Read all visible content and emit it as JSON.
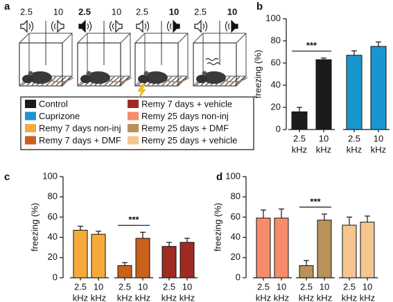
{
  "panel_a": {
    "label": "a",
    "boxes": [
      {
        "left": "2.5",
        "right": "10",
        "bold": "none"
      },
      {
        "left": "2.5",
        "right": "10",
        "bold": "left"
      },
      {
        "left": "2.5",
        "right": "10",
        "bold": "right"
      },
      {
        "left": "2.5",
        "right": "10",
        "bold": "right"
      }
    ]
  },
  "chart_data": [
    {
      "type": "bar",
      "panel": "b",
      "ylabel": "freezing (%)",
      "ylim": [
        0,
        100
      ],
      "yticks": [
        0,
        20,
        40,
        60,
        80,
        100
      ],
      "categories": [
        "2.5",
        "10"
      ],
      "category_unit": "kHz",
      "series": [
        {
          "name": "Control",
          "color": "#1b1b1b",
          "values": [
            16,
            63
          ],
          "errors": [
            4,
            1.5
          ]
        },
        {
          "name": "Cuprizone",
          "color": "#1a96cf",
          "values": [
            67,
            75
          ],
          "errors": [
            4,
            4
          ]
        }
      ],
      "significance": [
        {
          "series": 0,
          "label": "***"
        }
      ]
    },
    {
      "type": "bar",
      "panel": "c",
      "ylabel": "freezing (%)",
      "ylim": [
        0,
        100
      ],
      "yticks": [
        0,
        20,
        40,
        60,
        80,
        100
      ],
      "categories": [
        "2.5",
        "10"
      ],
      "category_unit": "kHz",
      "series": [
        {
          "name": "Remy 7 days non-inj",
          "color": "#f6aa3c",
          "values": [
            47,
            43
          ],
          "errors": [
            4,
            3
          ]
        },
        {
          "name": "Remy 7 days + DMF",
          "color": "#c9611d",
          "values": [
            12,
            39
          ],
          "errors": [
            3,
            6
          ]
        },
        {
          "name": "Remy 7 days + vehicle",
          "color": "#9f2b23",
          "values": [
            31,
            35
          ],
          "errors": [
            4,
            4
          ]
        }
      ],
      "significance": [
        {
          "series": 1,
          "label": "***"
        }
      ]
    },
    {
      "type": "bar",
      "panel": "d",
      "ylabel": "freezing (%)",
      "ylim": [
        0,
        100
      ],
      "yticks": [
        0,
        20,
        40,
        60,
        80,
        100
      ],
      "categories": [
        "2.5",
        "10"
      ],
      "category_unit": "kHz",
      "series": [
        {
          "name": "Remy 25 days non-inj",
          "color": "#f68c6b",
          "values": [
            59,
            59
          ],
          "errors": [
            8,
            9
          ]
        },
        {
          "name": "Remy 25 days + DMF",
          "color": "#b9915b",
          "values": [
            12,
            57
          ],
          "errors": [
            5,
            6
          ]
        },
        {
          "name": "Remy 25 days + vehicle",
          "color": "#f6c58f",
          "values": [
            52,
            55
          ],
          "errors": [
            8,
            6
          ]
        }
      ],
      "significance": [
        {
          "series": 1,
          "label": "***"
        }
      ]
    }
  ]
}
